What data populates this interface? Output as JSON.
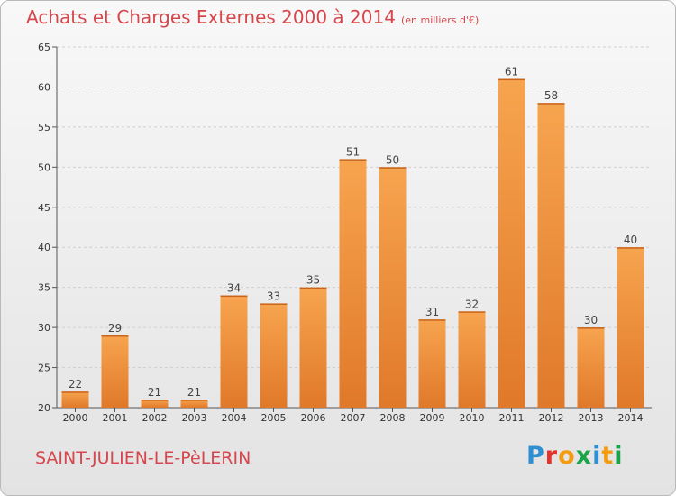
{
  "title": "Achats et Charges Externes 2000 à 2014",
  "subtitle": "(en milliers d'€)",
  "town": "SAINT-JULIEN-LE-PèLERIN",
  "logo": {
    "letters": [
      "P",
      "r",
      "o",
      "x",
      "i",
      "t",
      "i"
    ],
    "colors": [
      "#2f8fd3",
      "#e2342b",
      "#f39c12",
      "#1ba34a",
      "#2f8fd3",
      "#f39c12",
      "#1ba34a"
    ]
  },
  "colors": {
    "bar_top": "#f7a44f",
    "bar_bottom": "#e0792a",
    "title": "#d5474d"
  },
  "chart_data": {
    "type": "bar",
    "title": "Achats et Charges Externes 2000 à 2014",
    "categories": [
      "2000",
      "2001",
      "2002",
      "2003",
      "2004",
      "2005",
      "2006",
      "2007",
      "2008",
      "2009",
      "2010",
      "2011",
      "2012",
      "2013",
      "2014"
    ],
    "values": [
      22,
      29,
      21,
      21,
      34,
      33,
      35,
      51,
      50,
      31,
      32,
      61,
      58,
      30,
      40
    ],
    "ylim": [
      20,
      65
    ],
    "yticks": [
      20,
      25,
      30,
      35,
      40,
      45,
      50,
      55,
      60,
      65
    ],
    "grid": true
  }
}
